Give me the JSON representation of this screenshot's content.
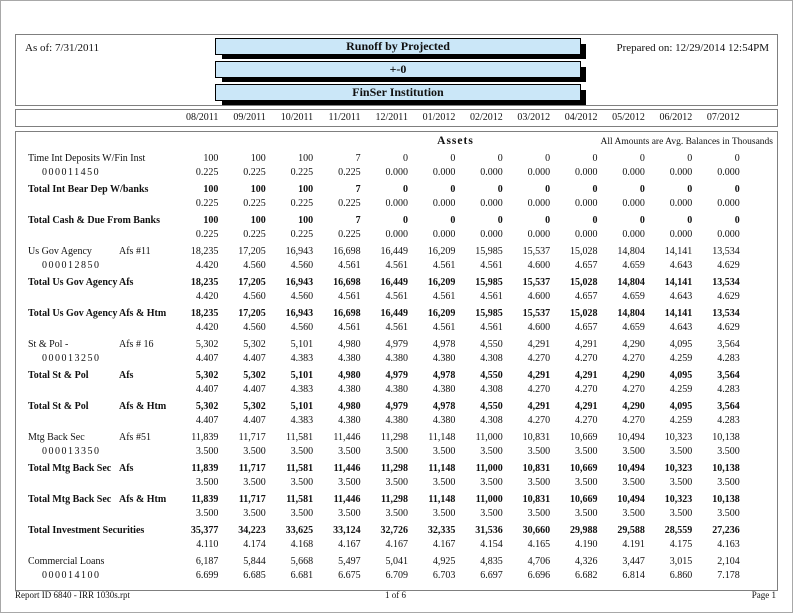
{
  "page": {
    "as_of": "As of: 7/31/2011",
    "prepared_label": "Prepared on:",
    "prepared_value": "12/29/2014  12:54PM",
    "titles": [
      "Runoff by Projected",
      "+-0",
      "FinSer Institution"
    ],
    "section_title": "Assets",
    "amounts_note": "All Amounts are Avg. Balances in Thousands",
    "accent_color": "#cbe7f8",
    "footer": {
      "report_id": "Report ID 6840  -  IRR 1030s.rpt",
      "page_of": "1 of 6",
      "page_label": "Page 1"
    }
  },
  "columns": [
    "08/2011",
    "09/2011",
    "10/2011",
    "11/2011",
    "12/2011",
    "01/2012",
    "02/2012",
    "03/2012",
    "04/2012",
    "05/2012",
    "06/2012",
    "07/2012"
  ],
  "rows": [
    {
      "label": "Time Int Deposits W/Fin Inst",
      "label2": "",
      "account": "000011450",
      "bold": false,
      "values": [
        "100",
        "100",
        "100",
        "7",
        "0",
        "0",
        "0",
        "0",
        "0",
        "0",
        "0",
        "0"
      ],
      "rates": [
        "0.225",
        "0.225",
        "0.225",
        "0.225",
        "0.000",
        "0.000",
        "0.000",
        "0.000",
        "0.000",
        "0.000",
        "0.000",
        "0.000"
      ]
    },
    {
      "label": "Total Int Bear Dep W/banks",
      "label2": "",
      "account": "",
      "bold": true,
      "values": [
        "100",
        "100",
        "100",
        "7",
        "0",
        "0",
        "0",
        "0",
        "0",
        "0",
        "0",
        "0"
      ],
      "rates": [
        "0.225",
        "0.225",
        "0.225",
        "0.225",
        "0.000",
        "0.000",
        "0.000",
        "0.000",
        "0.000",
        "0.000",
        "0.000",
        "0.000"
      ]
    },
    {
      "label": "Total Cash & Due From Banks",
      "label2": "",
      "account": "",
      "bold": true,
      "values": [
        "100",
        "100",
        "100",
        "7",
        "0",
        "0",
        "0",
        "0",
        "0",
        "0",
        "0",
        "0"
      ],
      "rates": [
        "0.225",
        "0.225",
        "0.225",
        "0.225",
        "0.000",
        "0.000",
        "0.000",
        "0.000",
        "0.000",
        "0.000",
        "0.000",
        "0.000"
      ]
    },
    {
      "label": "Us Gov Agency",
      "label2": "Afs #11",
      "account": "000012850",
      "bold": false,
      "values": [
        "18,235",
        "17,205",
        "16,943",
        "16,698",
        "16,449",
        "16,209",
        "15,985",
        "15,537",
        "15,028",
        "14,804",
        "14,141",
        "13,534"
      ],
      "rates": [
        "4.420",
        "4.560",
        "4.560",
        "4.561",
        "4.561",
        "4.561",
        "4.561",
        "4.600",
        "4.657",
        "4.659",
        "4.643",
        "4.629"
      ]
    },
    {
      "label": "Total Us Gov Agency",
      "label2": "Afs",
      "account": "",
      "bold": true,
      "values": [
        "18,235",
        "17,205",
        "16,943",
        "16,698",
        "16,449",
        "16,209",
        "15,985",
        "15,537",
        "15,028",
        "14,804",
        "14,141",
        "13,534"
      ],
      "rates": [
        "4.420",
        "4.560",
        "4.560",
        "4.561",
        "4.561",
        "4.561",
        "4.561",
        "4.600",
        "4.657",
        "4.659",
        "4.643",
        "4.629"
      ]
    },
    {
      "label": "Total Us Gov Agency",
      "label2": "Afs & Htm",
      "account": "",
      "bold": true,
      "values": [
        "18,235",
        "17,205",
        "16,943",
        "16,698",
        "16,449",
        "16,209",
        "15,985",
        "15,537",
        "15,028",
        "14,804",
        "14,141",
        "13,534"
      ],
      "rates": [
        "4.420",
        "4.560",
        "4.560",
        "4.561",
        "4.561",
        "4.561",
        "4.561",
        "4.600",
        "4.657",
        "4.659",
        "4.643",
        "4.629"
      ]
    },
    {
      "label": "St & Pol -",
      "label2": "Afs # 16",
      "account": "000013250",
      "bold": false,
      "values": [
        "5,302",
        "5,302",
        "5,101",
        "4,980",
        "4,979",
        "4,978",
        "4,550",
        "4,291",
        "4,291",
        "4,290",
        "4,095",
        "3,564"
      ],
      "rates": [
        "4.407",
        "4.407",
        "4.383",
        "4.380",
        "4.380",
        "4.380",
        "4.308",
        "4.270",
        "4.270",
        "4.270",
        "4.259",
        "4.283"
      ]
    },
    {
      "label": "Total St & Pol",
      "label2": "Afs",
      "account": "",
      "bold": true,
      "values": [
        "5,302",
        "5,302",
        "5,101",
        "4,980",
        "4,979",
        "4,978",
        "4,550",
        "4,291",
        "4,291",
        "4,290",
        "4,095",
        "3,564"
      ],
      "rates": [
        "4.407",
        "4.407",
        "4.383",
        "4.380",
        "4.380",
        "4.380",
        "4.308",
        "4.270",
        "4.270",
        "4.270",
        "4.259",
        "4.283"
      ]
    },
    {
      "label": "Total St & Pol",
      "label2": "Afs & Htm",
      "account": "",
      "bold": true,
      "values": [
        "5,302",
        "5,302",
        "5,101",
        "4,980",
        "4,979",
        "4,978",
        "4,550",
        "4,291",
        "4,291",
        "4,290",
        "4,095",
        "3,564"
      ],
      "rates": [
        "4.407",
        "4.407",
        "4.383",
        "4.380",
        "4.380",
        "4.380",
        "4.308",
        "4.270",
        "4.270",
        "4.270",
        "4.259",
        "4.283"
      ]
    },
    {
      "label": "Mtg Back Sec",
      "label2": "Afs #51",
      "account": "000013350",
      "bold": false,
      "values": [
        "11,839",
        "11,717",
        "11,581",
        "11,446",
        "11,298",
        "11,148",
        "11,000",
        "10,831",
        "10,669",
        "10,494",
        "10,323",
        "10,138"
      ],
      "rates": [
        "3.500",
        "3.500",
        "3.500",
        "3.500",
        "3.500",
        "3.500",
        "3.500",
        "3.500",
        "3.500",
        "3.500",
        "3.500",
        "3.500"
      ]
    },
    {
      "label": "Total Mtg Back Sec",
      "label2": "Afs",
      "account": "",
      "bold": true,
      "values": [
        "11,839",
        "11,717",
        "11,581",
        "11,446",
        "11,298",
        "11,148",
        "11,000",
        "10,831",
        "10,669",
        "10,494",
        "10,323",
        "10,138"
      ],
      "rates": [
        "3.500",
        "3.500",
        "3.500",
        "3.500",
        "3.500",
        "3.500",
        "3.500",
        "3.500",
        "3.500",
        "3.500",
        "3.500",
        "3.500"
      ]
    },
    {
      "label": "Total Mtg Back Sec",
      "label2": "Afs & Htm",
      "account": "",
      "bold": true,
      "values": [
        "11,839",
        "11,717",
        "11,581",
        "11,446",
        "11,298",
        "11,148",
        "11,000",
        "10,831",
        "10,669",
        "10,494",
        "10,323",
        "10,138"
      ],
      "rates": [
        "3.500",
        "3.500",
        "3.500",
        "3.500",
        "3.500",
        "3.500",
        "3.500",
        "3.500",
        "3.500",
        "3.500",
        "3.500",
        "3.500"
      ]
    },
    {
      "label": "Total Investment Securities",
      "label2": "",
      "account": "",
      "bold": true,
      "values": [
        "35,377",
        "34,223",
        "33,625",
        "33,124",
        "32,726",
        "32,335",
        "31,536",
        "30,660",
        "29,988",
        "29,588",
        "28,559",
        "27,236"
      ],
      "rates": [
        "4.110",
        "4.174",
        "4.168",
        "4.167",
        "4.167",
        "4.167",
        "4.154",
        "4.165",
        "4.190",
        "4.191",
        "4.175",
        "4.163"
      ]
    },
    {
      "label": "Commercial Loans",
      "label2": "",
      "account": "000014100",
      "bold": false,
      "values": [
        "6,187",
        "5,844",
        "5,668",
        "5,497",
        "5,041",
        "4,925",
        "4,835",
        "4,706",
        "4,326",
        "3,447",
        "3,015",
        "2,104"
      ],
      "rates": [
        "6.699",
        "6.685",
        "6.681",
        "6.675",
        "6.709",
        "6.703",
        "6.697",
        "6.696",
        "6.682",
        "6.814",
        "6.860",
        "7.178"
      ]
    }
  ]
}
